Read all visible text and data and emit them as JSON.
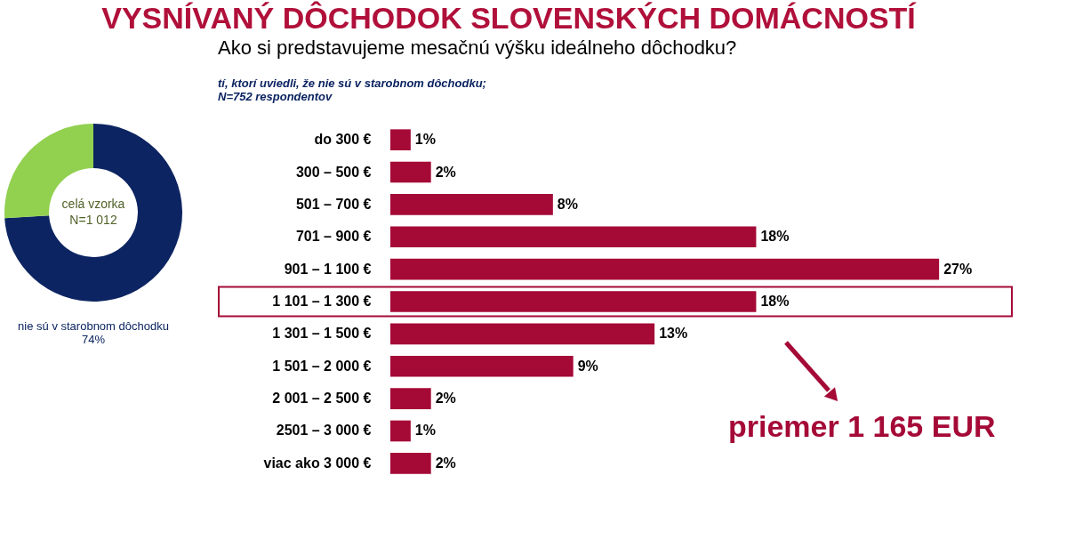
{
  "chart_data": [
    {
      "type": "donut",
      "title": "VYSNÍVANÝ DÔCHODOK SLOVENSKÝCH DOMÁCNOSTÍ",
      "categories": [
        "nie sú v starobnom dôchodku",
        null
      ],
      "values": [
        74,
        26
      ],
      "colors": [
        "#0c2461",
        "#92d050"
      ],
      "value_labels": [
        "74%",
        null
      ],
      "annotations": [
        "celá vzorka",
        "N=1 012"
      ]
    },
    {
      "type": "bar",
      "orientation": "horizontal",
      "title": "Ako si predstavujeme mesačnú výšku ideálneho dôchodku?",
      "subtitle": "tí, ktorí uviedli, že nie sú v starobnom dôchodku;\nN=752 respondentov",
      "categories": [
        "do 300 €",
        "300 – 500 €",
        "501 – 700 €",
        "701 – 900 €",
        "901 – 1 100 €",
        "1 101 – 1 300 €",
        "1 301 – 1 500 €",
        "1 501 – 2 000 €",
        "2 001 – 2 500 €",
        "2501 – 3 000 €",
        "viac ako 3 000 €"
      ],
      "series": [
        {
          "color": "#a50a37",
          "values": [
            1,
            2,
            8,
            18,
            27,
            18,
            13,
            9,
            2,
            1,
            2
          ],
          "value_labels": [
            "1%",
            "2%",
            "8%",
            "18%",
            "27%",
            "18%",
            "13%",
            "9%",
            "2%",
            "1%",
            "2%"
          ]
        }
      ],
      "annotations": [
        "priemer 1 165 EUR"
      ]
    }
  ]
}
